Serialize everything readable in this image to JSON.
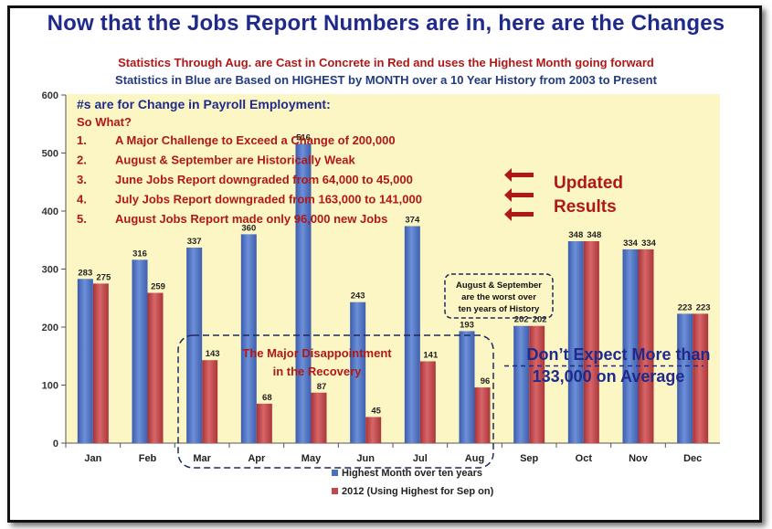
{
  "chart_data": {
    "type": "bar",
    "title": "Now that the Jobs Report Numbers are in, here are the Changes",
    "subtitles": [
      "Statistics Through Aug. are Cast in Concrete in Red and uses the Highest Month going forward",
      "Statistics in Blue are Based on HIGHEST by MONTH over a 10 Year History from 2003 to Present"
    ],
    "categories": [
      "Jan",
      "Feb",
      "Mar",
      "Apr",
      "May",
      "Jun",
      "Jul",
      "Aug",
      "Sep",
      "Oct",
      "Nov",
      "Dec"
    ],
    "series": [
      {
        "name": "Highest Month over ten years",
        "color": "#4a6fc0",
        "values": [
          283,
          316,
          337,
          360,
          516,
          243,
          374,
          193,
          202,
          348,
          334,
          223
        ]
      },
      {
        "name": "2012 (Using Highest for Sep on)",
        "color": "#c0484a",
        "values": [
          275,
          259,
          143,
          68,
          87,
          45,
          141,
          96,
          202,
          348,
          334,
          223
        ]
      }
    ],
    "ylim": [
      0,
      600
    ],
    "yticks": [
      0,
      100,
      200,
      300,
      400,
      500,
      600
    ],
    "grid": false,
    "legend": "bottom-center",
    "plot_background": "#fbf6c4"
  },
  "annotations": {
    "heading": "#s are for Change in Payroll Employment:",
    "so_what": "So What?",
    "items": [
      {
        "num": "1.",
        "text": "A Major Challenge to Exceed a Change of 200,000"
      },
      {
        "num": "2.",
        "text": "August & September are Historically Weak"
      },
      {
        "num": "3.",
        "text": "June Jobs Report downgraded from 64,000 to 45,000"
      },
      {
        "num": "4.",
        "text": "July Jobs Report downgraded from 163,000 to 141,000"
      },
      {
        "num": "5.",
        "text": "August Jobs Report made only 96,000 new Jobs"
      }
    ],
    "updated_line1": "Updated",
    "updated_line2": "Results",
    "aug_sep_note": [
      "August & September",
      "are  the worst over",
      "ten years of History"
    ],
    "major_line1": "The Major Disappointment",
    "major_line2": "in the Recovery",
    "dont_expect_line1": "Don’t Expect More than",
    "dont_expect_line2": "133,000 on Average",
    "average_value": 133
  }
}
